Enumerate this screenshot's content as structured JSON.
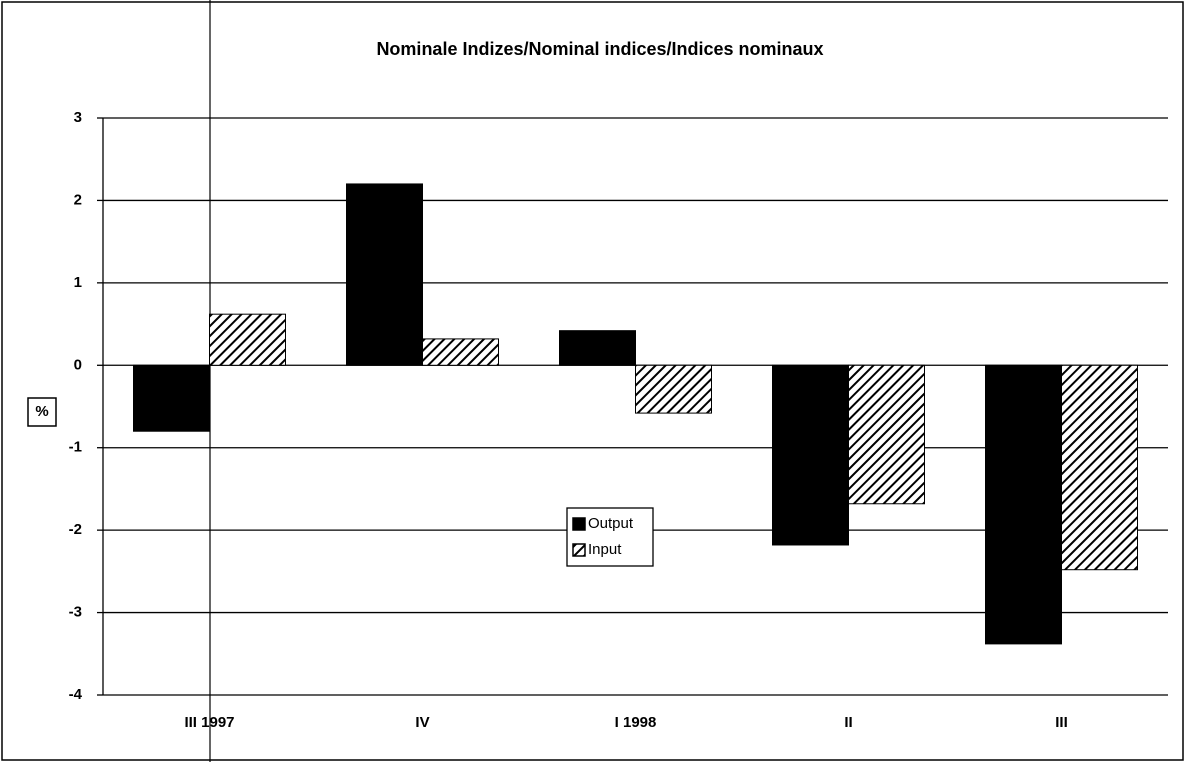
{
  "chart_data": {
    "type": "bar",
    "title": "Nominale Indizes/Nominal indices/Indices nominaux",
    "y_label": "%",
    "categories": [
      "III 1997",
      "IV",
      "I 1998",
      "II",
      "III"
    ],
    "series": [
      {
        "name": "Output",
        "color": "#000000",
        "values": [
          -0.8,
          2.2,
          0.42,
          -2.18,
          -3.38
        ]
      },
      {
        "name": "Input",
        "color": "#000000",
        "pattern": "diagonal-hatch",
        "values": [
          0.62,
          0.32,
          -0.58,
          -1.68,
          -2.48
        ]
      }
    ],
    "ylim": [
      -4,
      3
    ],
    "yticks": [
      -4,
      -3,
      -2,
      -1,
      0,
      1,
      2,
      3
    ],
    "grid": true,
    "legend": "center"
  }
}
